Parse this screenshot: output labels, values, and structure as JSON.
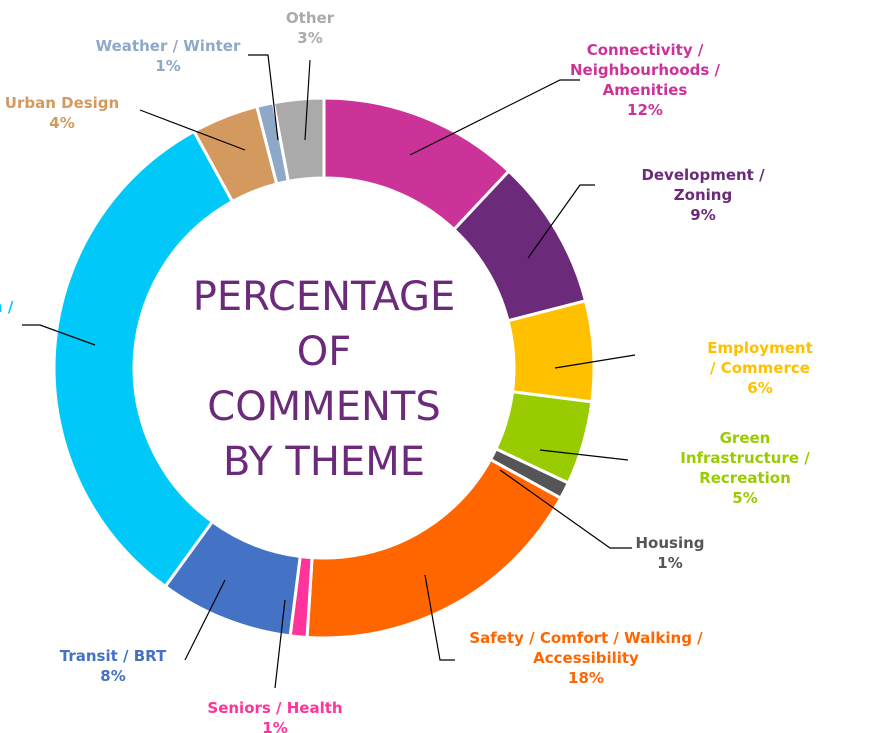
{
  "chart_data": {
    "type": "donut",
    "center_text": "PERCENTAGE\nOF\nCOMMENTS\nBY THEME",
    "categories": [
      "Connectivity /\nNeighbourhoods /\nAmenities",
      "Development / Zoning",
      "Employment / Commerce",
      "Green Infrastructure /\nRecreation",
      "Housing",
      "Safety / Comfort / Walking /\nAccessibility",
      "Seniors / Health",
      "Transit / BRT",
      "n /",
      "Urban Design",
      "Weather / Winter",
      "Other"
    ],
    "values": [
      12,
      9,
      6,
      5,
      1,
      18,
      1,
      8,
      32,
      4,
      1,
      3
    ],
    "value_labels": [
      "12%",
      "9%",
      "6%",
      "5%",
      "1%",
      "18%",
      "1%",
      "8%",
      null,
      "4%",
      "1%",
      "3%"
    ],
    "colors": [
      "#cc3399",
      "#6b2a7a",
      "#ffc000",
      "#99cc00",
      "#555555",
      "#ff6600",
      "#ff3399",
      "#4472c4",
      "#00c8f8",
      "#d4995e",
      "#8ea9c8",
      "#aaaaaa"
    ]
  }
}
